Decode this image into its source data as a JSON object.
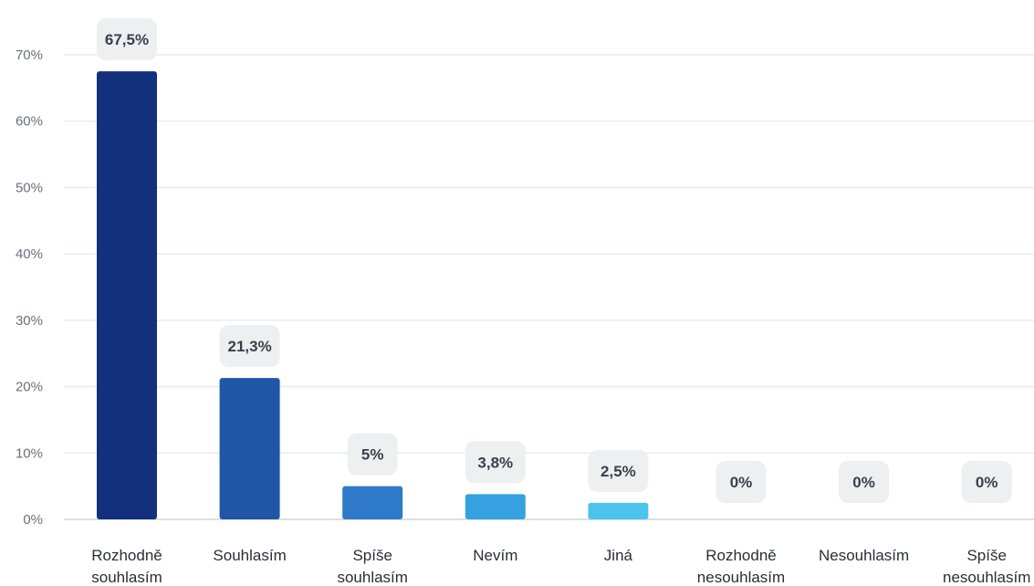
{
  "chart_data": {
    "type": "bar",
    "title": "",
    "xlabel": "",
    "ylabel": "",
    "ylim": [
      0,
      70
    ],
    "y_ticks": [
      "0%",
      "10%",
      "20%",
      "30%",
      "40%",
      "50%",
      "60%",
      "70%"
    ],
    "grid": true,
    "categories": [
      [
        "Rozhodně",
        "souhlasím"
      ],
      [
        "Souhlasím"
      ],
      [
        "Spíše",
        "souhlasím"
      ],
      [
        "Nevím"
      ],
      [
        "Jiná"
      ],
      [
        "Rozhodně",
        "nesouhlasím"
      ],
      [
        "Nesouhlasím"
      ],
      [
        "Spíše",
        "nesouhlasím"
      ]
    ],
    "values": [
      67.5,
      21.3,
      5,
      3.8,
      2.5,
      0,
      0,
      0
    ],
    "value_labels": [
      "67,5%",
      "21,3%",
      "5%",
      "3,8%",
      "2,5%",
      "0%",
      "0%",
      "0%"
    ],
    "colors": [
      "#13307d",
      "#1f56a6",
      "#2e7ac8",
      "#35a1e0",
      "#4cc2ee",
      "#5cd0f0",
      "#5cd0f0",
      "#5cd0f0"
    ],
    "badge_color": "#eeeff1",
    "grid_color": "#e6e8ec"
  }
}
